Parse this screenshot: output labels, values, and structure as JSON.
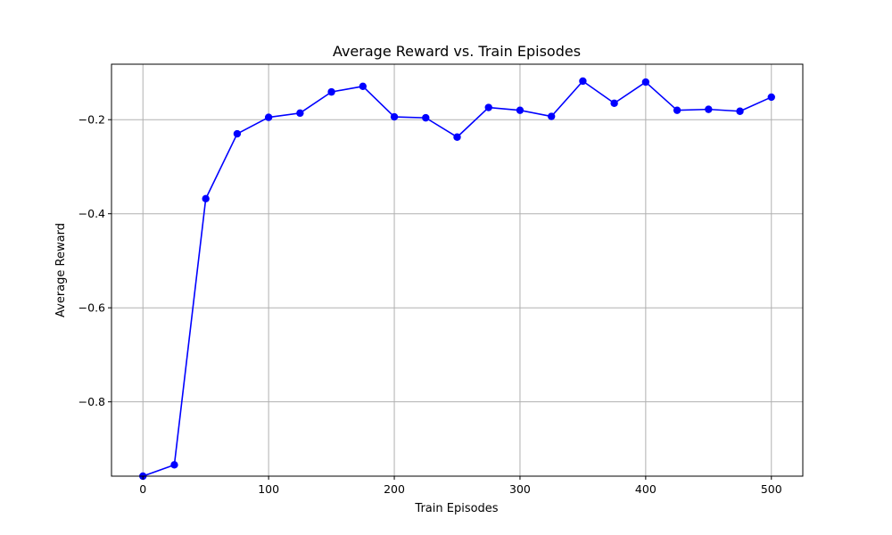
{
  "chart_data": {
    "type": "line",
    "title": "Average Reward vs. Train Episodes",
    "xlabel": "Train Episodes",
    "ylabel": "Average Reward",
    "xlim": [
      -25,
      525
    ],
    "ylim": [
      -0.958,
      -0.082
    ],
    "xticks": [
      0,
      100,
      200,
      300,
      400,
      500
    ],
    "xtick_labels": [
      "0",
      "100",
      "200",
      "300",
      "400",
      "500"
    ],
    "yticks": [
      -0.8,
      -0.6,
      -0.4,
      -0.2
    ],
    "ytick_labels": [
      "−0.8",
      "−0.6",
      "−0.4",
      "−0.2"
    ],
    "grid": true,
    "series": [
      {
        "color": "#0000ff",
        "marker": "circle",
        "x": [
          0,
          25,
          50,
          75,
          100,
          125,
          150,
          175,
          200,
          225,
          250,
          275,
          300,
          325,
          350,
          375,
          400,
          425,
          450,
          475,
          500
        ],
        "y": [
          -0.958,
          -0.934,
          -0.368,
          -0.23,
          -0.195,
          -0.186,
          -0.141,
          -0.129,
          -0.194,
          -0.196,
          -0.237,
          -0.174,
          -0.18,
          -0.193,
          -0.118,
          -0.165,
          -0.12,
          -0.18,
          -0.178,
          -0.182,
          -0.152
        ]
      }
    ]
  }
}
